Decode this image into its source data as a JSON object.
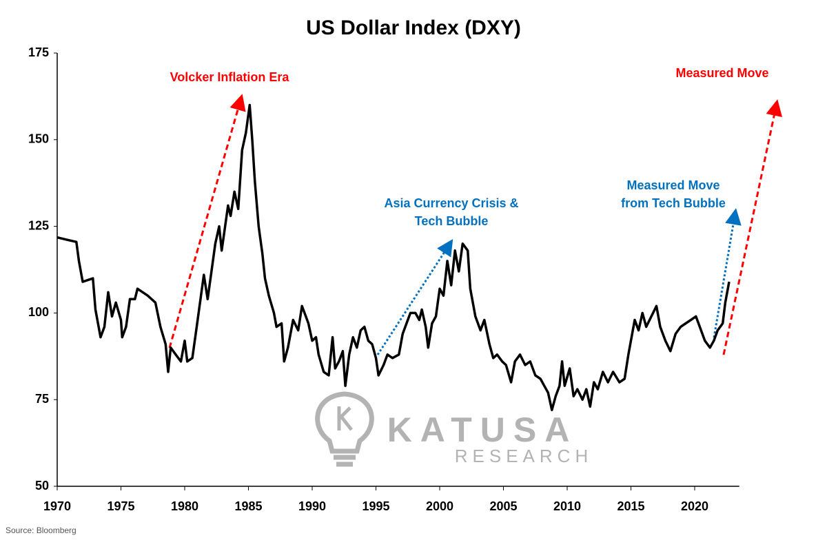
{
  "chart_data": {
    "type": "line",
    "title": "US Dollar Index (DXY)",
    "source": "Source: Bloomberg",
    "watermark": {
      "brand": "KATUSA",
      "sub": "RESEARCH"
    },
    "color": "#000000",
    "x": [
      1970,
      1970.9,
      1971.5,
      1971.7,
      1972.0,
      1972.8,
      1973.0,
      1973.4,
      1973.7,
      1974.0,
      1974.3,
      1974.6,
      1975.0,
      1975.1,
      1975.4,
      1975.7,
      1976.1,
      1976.3,
      1977.1,
      1977.7,
      1978.1,
      1978.5,
      1978.7,
      1978.9,
      1979.3,
      1979.7,
      1980.0,
      1980.2,
      1980.6,
      1980.9,
      1981.5,
      1981.8,
      1982.4,
      1982.7,
      1982.9,
      1983.4,
      1983.6,
      1983.9,
      1984.2,
      1984.5,
      1984.8,
      1985.1,
      1985.3,
      1985.5,
      1985.8,
      1986.1,
      1986.3,
      1986.6,
      1987.0,
      1987.2,
      1987.6,
      1987.8,
      1988.1,
      1988.5,
      1988.9,
      1989.2,
      1989.5,
      1989.7,
      1990.0,
      1990.3,
      1990.5,
      1990.9,
      1991.3,
      1991.6,
      1991.8,
      1992.1,
      1992.4,
      1992.6,
      1992.9,
      1993.2,
      1993.5,
      1993.8,
      1994.1,
      1994.4,
      1994.7,
      1995.0,
      1995.2,
      1995.6,
      1995.9,
      1996.3,
      1996.8,
      1997.1,
      1997.4,
      1997.7,
      1998.1,
      1998.4,
      1998.6,
      1998.9,
      1999.1,
      1999.4,
      1999.7,
      2000.0,
      2000.3,
      2000.6,
      2000.9,
      2001.2,
      2001.5,
      2001.8,
      2002.2,
      2002.4,
      2002.8,
      2003.2,
      2003.5,
      2003.9,
      2004.2,
      2004.5,
      2004.9,
      2005.2,
      2005.6,
      2005.9,
      2006.3,
      2006.7,
      2007.1,
      2007.5,
      2007.9,
      2008.2,
      2008.5,
      2008.8,
      2009.1,
      2009.4,
      2009.6,
      2009.8,
      2010.2,
      2010.5,
      2010.8,
      2011.2,
      2011.5,
      2011.8,
      2012.1,
      2012.4,
      2012.8,
      2013.2,
      2013.6,
      2014.1,
      2014.5,
      2014.8,
      2015.3,
      2015.6,
      2015.9,
      2016.2,
      2016.6,
      2017.0,
      2017.3,
      2017.7,
      2018.1,
      2018.5,
      2018.9,
      2019.3,
      2019.7,
      2020.1,
      2020.4,
      2020.8,
      2021.2,
      2021.5,
      2021.8,
      2022.2,
      2022.4,
      2022.7
    ],
    "values": [
      121.8,
      121,
      120.5,
      115,
      109,
      110,
      101,
      93,
      96,
      106,
      99,
      103,
      98,
      93,
      96,
      104,
      104,
      107,
      105,
      103,
      96,
      91,
      83,
      90,
      88,
      86,
      92,
      86,
      87,
      95,
      111,
      104,
      120,
      125,
      118,
      131,
      128,
      135,
      130,
      147,
      152,
      160,
      150,
      138,
      125,
      117,
      110,
      105,
      100,
      96,
      97,
      86,
      90,
      98,
      95,
      102,
      99,
      97,
      92,
      93,
      88,
      83,
      82,
      93,
      84,
      86,
      89,
      79,
      88,
      93,
      90,
      95,
      96,
      92,
      91,
      87,
      82,
      85,
      88,
      87,
      88,
      94,
      97,
      100,
      100,
      98,
      101,
      96,
      90,
      97,
      99,
      107,
      105,
      115,
      108,
      118,
      112,
      120,
      118,
      107,
      99,
      95,
      98,
      91,
      87,
      88,
      86,
      85,
      80,
      86,
      88,
      85,
      86,
      82,
      81,
      79,
      77,
      72,
      76,
      79,
      86,
      79,
      84,
      76,
      78,
      75,
      78,
      73,
      80,
      78,
      83,
      80,
      83,
      80,
      81,
      88,
      98,
      95,
      100,
      96,
      99,
      102,
      96,
      92,
      89,
      94,
      96,
      97,
      98,
      99,
      96,
      92,
      90,
      92,
      95,
      97,
      103,
      109
    ],
    "xlim": [
      1970,
      2023.5
    ],
    "xticks": [
      1970,
      1975,
      1980,
      1985,
      1990,
      1995,
      2000,
      2005,
      2010,
      2015,
      2020
    ],
    "ylim": [
      50,
      175
    ],
    "yticks": [
      50,
      75,
      100,
      125,
      150,
      175
    ],
    "annotations": [
      {
        "lines": [
          "Volcker Inflation Era"
        ],
        "color": "#ff0000"
      },
      {
        "lines": [
          "Asia Currency Crisis &",
          "Tech Bubble"
        ],
        "color": "#0070c0"
      },
      {
        "lines": [
          "Measured Move",
          "from Tech Bubble"
        ],
        "color": "#0070c0"
      },
      {
        "lines": [
          "Measured Move"
        ],
        "color": "#ff0000"
      }
    ]
  }
}
